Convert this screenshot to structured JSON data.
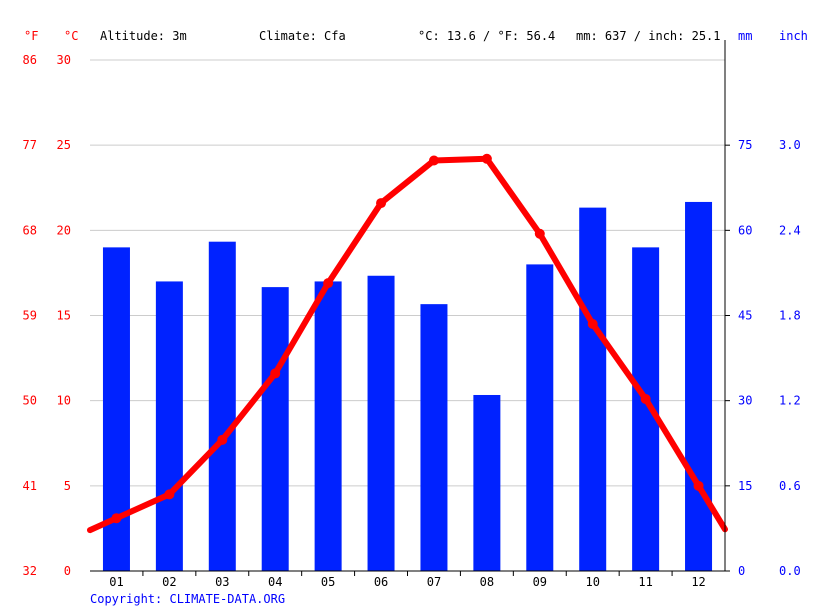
{
  "header": {
    "altitude": "Altitude: 3m",
    "climate": "Climate: Cfa",
    "avg_temp": "°C: 13.6 / °F: 56.4",
    "precip_total": "mm: 637 / inch: 25.1"
  },
  "units": {
    "fahrenheit": "°F",
    "celsius": "°C",
    "mm": "mm",
    "inch": "inch"
  },
  "copyright": "Copyright: CLIMATE-DATA.ORG",
  "colors": {
    "temperature": "#ff0000",
    "precipitation": "#0022ff",
    "grid": "#cccccc",
    "axis": "#000000"
  },
  "chart_data": {
    "type": "bar",
    "categories": [
      "01",
      "02",
      "03",
      "04",
      "05",
      "06",
      "07",
      "08",
      "09",
      "10",
      "11",
      "12"
    ],
    "series": [
      {
        "type": "bar",
        "axis": "precipitation",
        "values": [
          57,
          51,
          58,
          50,
          51,
          52,
          47,
          31,
          54,
          64,
          57,
          65
        ]
      },
      {
        "type": "line",
        "axis": "temperature",
        "values": [
          3.1,
          4.5,
          7.7,
          11.6,
          16.9,
          21.6,
          24.1,
          24.2,
          19.8,
          14.5,
          10.1,
          5.0
        ]
      }
    ],
    "temperature_axis": {
      "celsius_ticks": [
        "0",
        "5",
        "10",
        "15",
        "20",
        "25",
        "30"
      ],
      "fahrenheit_ticks": [
        "32",
        "41",
        "50",
        "59",
        "68",
        "77",
        "86"
      ],
      "ylim": [
        0,
        30
      ]
    },
    "precipitation_axis": {
      "mm_ticks": [
        "0",
        "15",
        "30",
        "45",
        "60",
        "75"
      ],
      "inch_ticks": [
        "0.0",
        "0.6",
        "1.2",
        "1.8",
        "2.4",
        "3.0"
      ],
      "ylim": [
        0,
        90
      ]
    },
    "grid": true
  }
}
